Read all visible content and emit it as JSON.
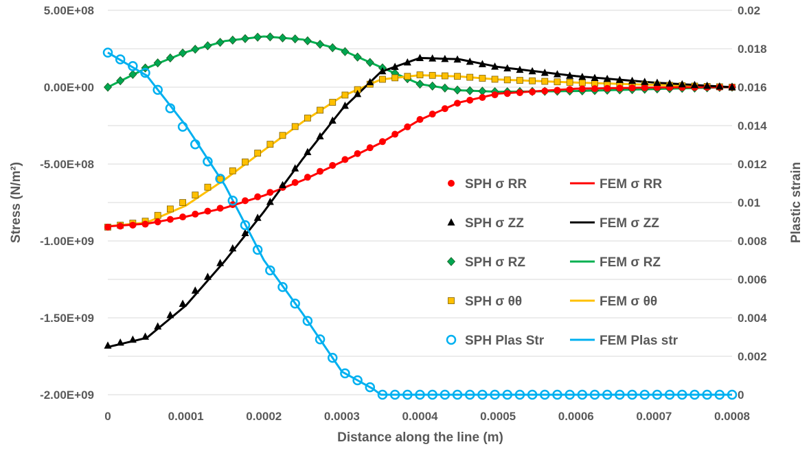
{
  "chart_data": {
    "type": "line",
    "xlabel": "Distance along the line (m)",
    "ylabel": "Stress (N/m²)",
    "y2label": "Plastic strain",
    "xlim": [
      0,
      0.0008
    ],
    "ylim": [
      -2000000000,
      500000000
    ],
    "y2lim": [
      0,
      0.02
    ],
    "grid": "horizontal",
    "legend_position": "center-right",
    "x_ticks": [
      "0",
      "0.0001",
      "0.0002",
      "0.0003",
      "0.0004",
      "0.0005",
      "0.0006",
      "0.0007",
      "0.0008"
    ],
    "y_ticks": [
      "5.00E+08",
      "0.00E+00",
      "-5.00E+08",
      "-1.00E+09",
      "-1.50E+09",
      "-2.00E+09"
    ],
    "y2_ticks": [
      "0.02",
      "0.018",
      "0.016",
      "0.014",
      "0.012",
      "0.01",
      "0.008",
      "0.006",
      "0.004",
      "0.002",
      "0"
    ],
    "series": [
      {
        "name": "SPH σ RR",
        "kind": "markers",
        "marker": "circle",
        "color": "#ff0000",
        "axis": "left",
        "sample_every": 1.6e-05,
        "curve": [
          [
            0,
            -910000000
          ],
          [
            5e-05,
            -890000000
          ],
          [
            0.0001,
            -840000000
          ],
          [
            0.00015,
            -780000000
          ],
          [
            0.0002,
            -700000000
          ],
          [
            0.00025,
            -600000000
          ],
          [
            0.0003,
            -480000000
          ],
          [
            0.00035,
            -360000000
          ],
          [
            0.0004,
            -210000000
          ],
          [
            0.00045,
            -100000000
          ],
          [
            0.0005,
            -45000000
          ],
          [
            0.0006,
            -12000000
          ],
          [
            0.0007,
            -2000000
          ],
          [
            0.0008,
            0
          ]
        ]
      },
      {
        "name": "FEM σ RR",
        "kind": "line",
        "color": "#ff0000",
        "axis": "left",
        "curve": [
          [
            0,
            -905000000
          ],
          [
            5e-05,
            -888000000
          ],
          [
            0.0001,
            -842000000
          ],
          [
            0.00015,
            -785000000
          ],
          [
            0.0002,
            -705000000
          ],
          [
            0.00025,
            -605000000
          ],
          [
            0.0003,
            -485000000
          ],
          [
            0.00035,
            -362000000
          ],
          [
            0.0004,
            -212000000
          ],
          [
            0.00045,
            -100000000
          ],
          [
            0.0005,
            -42000000
          ],
          [
            0.0006,
            -10000000
          ],
          [
            0.0007,
            -2000000
          ],
          [
            0.0008,
            0
          ]
        ]
      },
      {
        "name": "SPH σ ZZ",
        "kind": "markers",
        "marker": "triangle",
        "color": "#000000",
        "axis": "left",
        "sample_every": 1.6e-05,
        "curve": [
          [
            0,
            -1680000000
          ],
          [
            5e-05,
            -1620000000
          ],
          [
            0.0001,
            -1390000000
          ],
          [
            0.00015,
            -1110000000
          ],
          [
            0.0002,
            -800000000
          ],
          [
            0.00025,
            -460000000
          ],
          [
            0.0003,
            -140000000
          ],
          [
            0.00035,
            100000000
          ],
          [
            0.0004,
            190000000
          ],
          [
            0.00045,
            180000000
          ],
          [
            0.0005,
            130000000
          ],
          [
            0.0006,
            70000000
          ],
          [
            0.0007,
            30000000
          ],
          [
            0.0008,
            0
          ]
        ]
      },
      {
        "name": "FEM σ ZZ",
        "kind": "line",
        "color": "#000000",
        "axis": "left",
        "curve": [
          [
            0,
            -1690000000
          ],
          [
            5e-05,
            -1630000000
          ],
          [
            0.0001,
            -1420000000
          ],
          [
            0.00015,
            -1130000000
          ],
          [
            0.0002,
            -810000000
          ],
          [
            0.00025,
            -465000000
          ],
          [
            0.0003,
            -145000000
          ],
          [
            0.00035,
            100000000
          ],
          [
            0.0004,
            190000000
          ],
          [
            0.00045,
            182000000
          ],
          [
            0.0005,
            132000000
          ],
          [
            0.0006,
            72000000
          ],
          [
            0.0007,
            30000000
          ],
          [
            0.0008,
            0
          ]
        ]
      },
      {
        "name": "SPH σ RZ",
        "kind": "markers",
        "marker": "diamond",
        "color": "#00a651",
        "axis": "left",
        "sample_every": 1.6e-05,
        "curve": [
          [
            0,
            0
          ],
          [
            5e-05,
            130000000
          ],
          [
            0.0001,
            230000000
          ],
          [
            0.00015,
            300000000
          ],
          [
            0.0002,
            330000000
          ],
          [
            0.00025,
            310000000
          ],
          [
            0.0003,
            240000000
          ],
          [
            0.00035,
            130000000
          ],
          [
            0.0004,
            20000000
          ],
          [
            0.00045,
            -20000000
          ],
          [
            0.0005,
            -30000000
          ],
          [
            0.0006,
            -25000000
          ],
          [
            0.0007,
            -12000000
          ],
          [
            0.0008,
            0
          ]
        ]
      },
      {
        "name": "FEM σ RZ",
        "kind": "line",
        "color": "#00b050",
        "axis": "left",
        "curve": [
          [
            0,
            0
          ],
          [
            5e-05,
            125000000
          ],
          [
            0.0001,
            228000000
          ],
          [
            0.00015,
            300000000
          ],
          [
            0.0002,
            330000000
          ],
          [
            0.00025,
            310000000
          ],
          [
            0.0003,
            242000000
          ],
          [
            0.00035,
            130000000
          ],
          [
            0.0004,
            20000000
          ],
          [
            0.00045,
            -20000000
          ],
          [
            0.0005,
            -30000000
          ],
          [
            0.0006,
            -25000000
          ],
          [
            0.0007,
            -12000000
          ],
          [
            0.0008,
            0
          ]
        ]
      },
      {
        "name": "SPH σ θθ",
        "kind": "markers",
        "marker": "square",
        "color": "#ffc000",
        "axis": "left",
        "sample_every": 1.6e-05,
        "curve": [
          [
            0,
            -910000000
          ],
          [
            5e-05,
            -870000000
          ],
          [
            0.0001,
            -740000000
          ],
          [
            0.00015,
            -580000000
          ],
          [
            0.0002,
            -400000000
          ],
          [
            0.00025,
            -220000000
          ],
          [
            0.0003,
            -60000000
          ],
          [
            0.00035,
            50000000
          ],
          [
            0.0004,
            80000000
          ],
          [
            0.00045,
            70000000
          ],
          [
            0.0005,
            50000000
          ],
          [
            0.0006,
            30000000
          ],
          [
            0.0007,
            15000000
          ],
          [
            0.0008,
            0
          ]
        ]
      },
      {
        "name": "FEM σ θθ",
        "kind": "line",
        "color": "#ffc000",
        "axis": "left",
        "curve": [
          [
            0,
            -905000000
          ],
          [
            5e-05,
            -880000000
          ],
          [
            0.0001,
            -770000000
          ],
          [
            0.00015,
            -600000000
          ],
          [
            0.0002,
            -410000000
          ],
          [
            0.00025,
            -225000000
          ],
          [
            0.0003,
            -60000000
          ],
          [
            0.00035,
            50000000
          ],
          [
            0.0004,
            78000000
          ],
          [
            0.00045,
            70000000
          ],
          [
            0.0005,
            50000000
          ],
          [
            0.0006,
            30000000
          ],
          [
            0.0007,
            15000000
          ],
          [
            0.0008,
            0
          ]
        ]
      },
      {
        "name": "SPH Plas Str",
        "kind": "markers",
        "marker": "open-circle",
        "color": "#00b0f0",
        "axis": "right",
        "sample_every": 1.6e-05,
        "curve": [
          [
            0,
            0.0178
          ],
          [
            5e-05,
            0.0167
          ],
          [
            0.0001,
            0.0137
          ],
          [
            0.00015,
            0.0109
          ],
          [
            0.0002,
            0.0069
          ],
          [
            0.00025,
            0.0042
          ],
          [
            0.0003,
            0.0012
          ],
          [
            0.00034,
            0.0003
          ],
          [
            0.00035,
            0
          ],
          [
            0.0008,
            0
          ]
        ]
      },
      {
        "name": "FEM Plas str",
        "kind": "line",
        "color": "#00b0f0",
        "axis": "right",
        "curve": [
          [
            0,
            0.0178
          ],
          [
            5e-05,
            0.0166
          ],
          [
            0.0001,
            0.014
          ],
          [
            0.00015,
            0.0109
          ],
          [
            0.0002,
            0.007
          ],
          [
            0.00025,
            0.0042
          ],
          [
            0.0003,
            0.0012
          ],
          [
            0.00034,
            0.0003
          ],
          [
            0.00035,
            0
          ],
          [
            0.0008,
            0
          ]
        ]
      }
    ]
  }
}
